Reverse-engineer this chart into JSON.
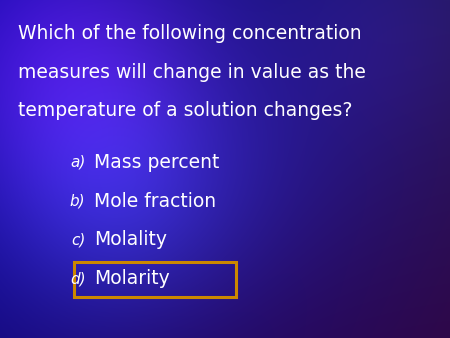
{
  "question_lines": [
    "Which of the following concentration",
    "measures will change in value as the",
    "temperature of a solution changes?"
  ],
  "options": [
    {
      "label": "a)",
      "text": "Mass percent",
      "highlighted": false
    },
    {
      "label": "b)",
      "text": "Mole fraction",
      "highlighted": false
    },
    {
      "label": "c)",
      "text": "Molality",
      "highlighted": false
    },
    {
      "label": "d)",
      "text": "Molarity",
      "highlighted": true
    }
  ],
  "text_color": "#ffffff",
  "highlight_box_color": "#cc8800",
  "question_fontsize": 13.5,
  "option_fontsize": 13.5,
  "label_fontsize": 11,
  "fig_width": 4.5,
  "fig_height": 3.38,
  "dpi": 100
}
